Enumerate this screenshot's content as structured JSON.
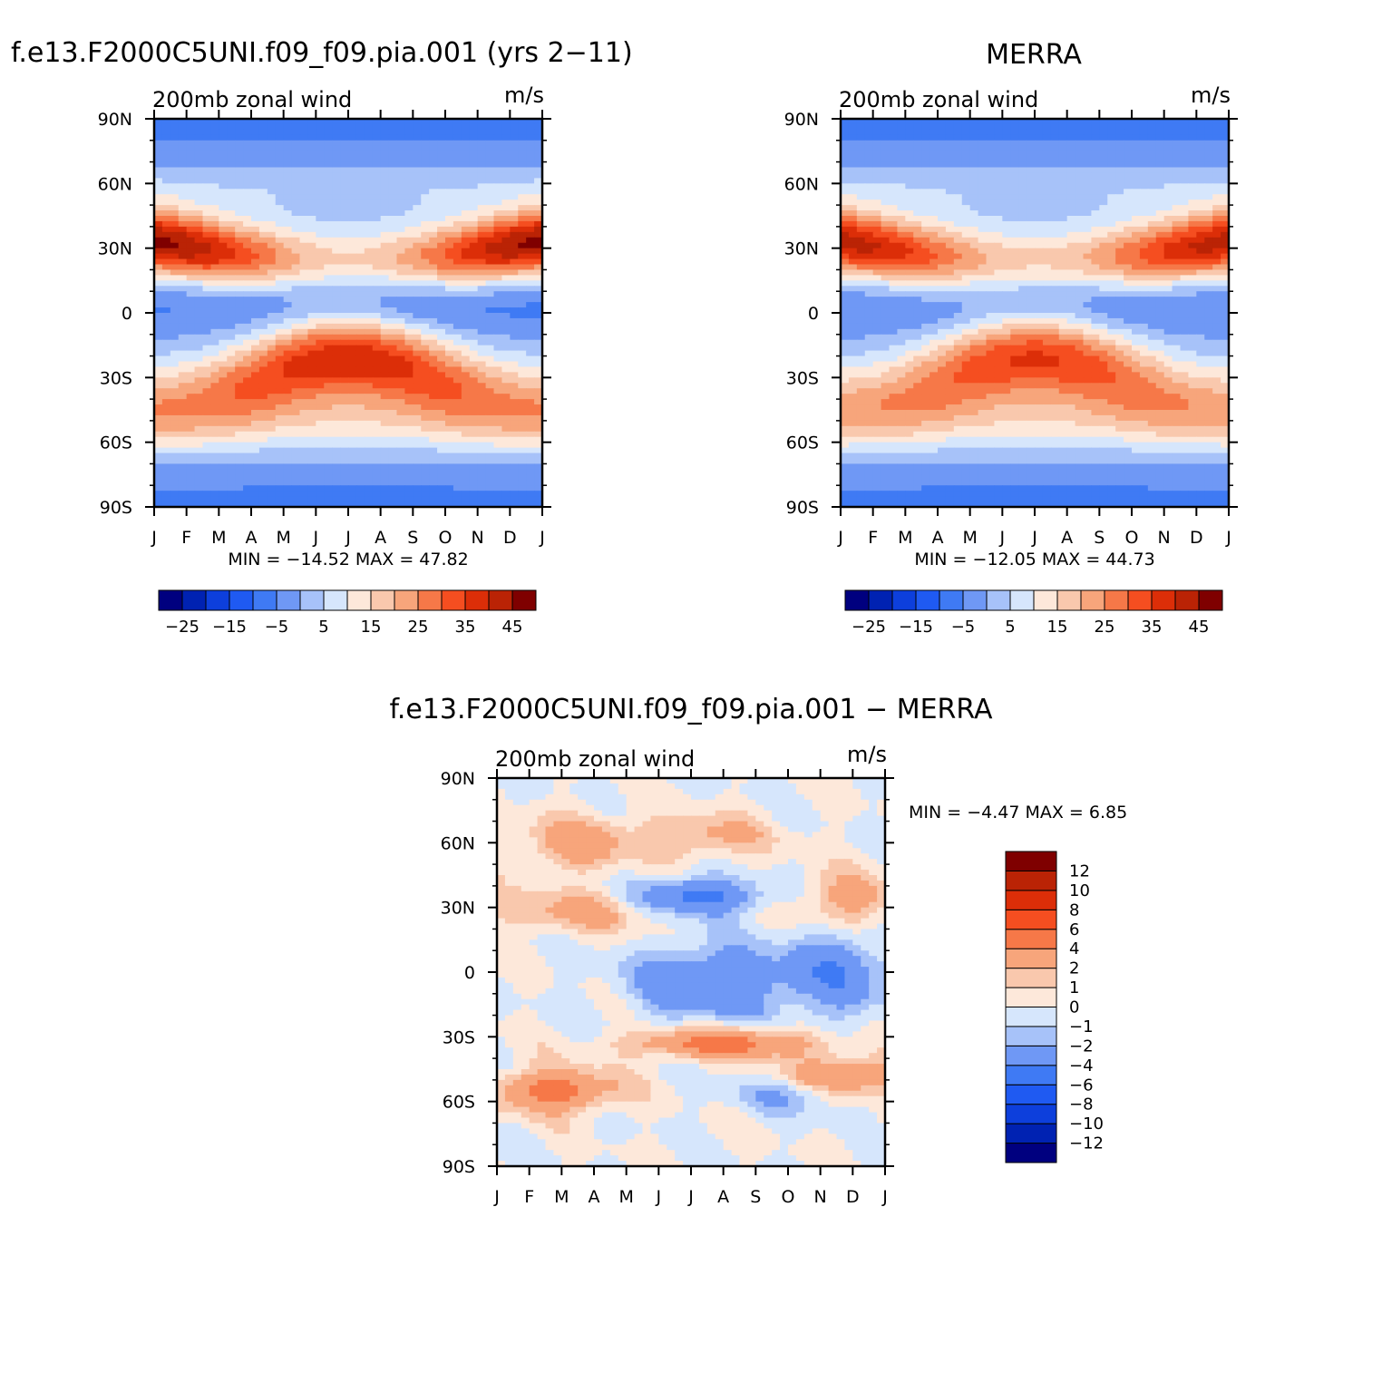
{
  "chart_data": [
    {
      "type": "heatmap",
      "title": "f.e13.F2000C5UNI.f09_f09.pia.001 (yrs 2−11)",
      "subtitle_left": "200mb zonal wind",
      "subtitle_right": "m/s",
      "x_tick_labels": [
        "J",
        "F",
        "M",
        "A",
        "M",
        "J",
        "J",
        "A",
        "S",
        "O",
        "N",
        "D",
        "J"
      ],
      "y_tick_labels": [
        "90N",
        "60N",
        "30N",
        "0",
        "30S",
        "60S",
        "90S"
      ],
      "y_range": [
        -90,
        90
      ],
      "stats_text": "MIN = −14.52 MAX =   47.82",
      "min": -14.52,
      "max": 47.82,
      "colorbar_orientation": "horizontal",
      "colorbar_labels": [
        "−25",
        "−15",
        "−5",
        "5",
        "15",
        "25",
        "35",
        "45"
      ],
      "variant": "model"
    },
    {
      "type": "heatmap",
      "title": "MERRA",
      "subtitle_left": "200mb zonal wind",
      "subtitle_right": "m/s",
      "x_tick_labels": [
        "J",
        "F",
        "M",
        "A",
        "M",
        "J",
        "J",
        "A",
        "S",
        "O",
        "N",
        "D",
        "J"
      ],
      "y_tick_labels": [
        "90N",
        "60N",
        "30N",
        "0",
        "30S",
        "60S",
        "90S"
      ],
      "y_range": [
        -90,
        90
      ],
      "stats_text": "MIN = −12.05 MAX =   44.73",
      "min": -12.05,
      "max": 44.73,
      "colorbar_orientation": "horizontal",
      "colorbar_labels": [
        "−25",
        "−15",
        "−5",
        "5",
        "15",
        "25",
        "35",
        "45"
      ],
      "variant": "obs"
    },
    {
      "type": "heatmap",
      "title": "f.e13.F2000C5UNI.f09_f09.pia.001 − MERRA",
      "subtitle_left": "200mb zonal wind",
      "subtitle_right": "m/s",
      "x_tick_labels": [
        "J",
        "F",
        "M",
        "A",
        "M",
        "J",
        "J",
        "A",
        "S",
        "O",
        "N",
        "D",
        "J"
      ],
      "y_tick_labels": [
        "90N",
        "60N",
        "30N",
        "0",
        "30S",
        "60S",
        "90S"
      ],
      "y_range": [
        -90,
        90
      ],
      "stats_text": "MIN =   −4.47 MAX =    6.85",
      "min": -4.47,
      "max": 6.85,
      "colorbar_orientation": "vertical",
      "colorbar_labels": [
        "12",
        "10",
        "8",
        "6",
        "4",
        "2",
        "1",
        "0",
        "−1",
        "−2",
        "−4",
        "−6",
        "−8",
        "−10",
        "−12"
      ],
      "variant": "diff"
    }
  ],
  "colors": {
    "scale": [
      "#00007f",
      "#0022b2",
      "#0d3fdc",
      "#1f5af2",
      "#3f7af4",
      "#6f98f5",
      "#a7c2f9",
      "#d6e6fc",
      "#fde8da",
      "#f9c8ad",
      "#f7a57b",
      "#f67848",
      "#f54e20",
      "#dc2e08",
      "#ba2305",
      "#7f0000"
    ]
  }
}
